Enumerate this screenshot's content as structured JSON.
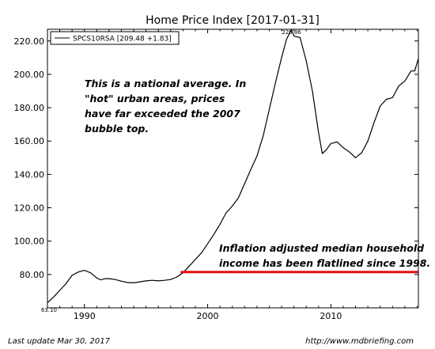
{
  "chart_data": {
    "type": "line",
    "title": "Home Price Index  [2017-01-31]",
    "xlim": [
      1987.0,
      2017.1
    ],
    "ylim": [
      60,
      227
    ],
    "yticks": [
      80,
      100,
      120,
      140,
      160,
      180,
      200,
      220
    ],
    "ytick_labels": [
      "80.00",
      "100.00",
      "120.00",
      "140.00",
      "160.00",
      "180.00",
      "200.00",
      "220.00"
    ],
    "xticks": [
      1990,
      2000,
      2010
    ],
    "xtick_labels": [
      "1990",
      "2000",
      "2010"
    ],
    "legend_label": "SPCS10RSA [209.48 +1.83]",
    "legend_position": "top-left",
    "grid": false,
    "series": [
      {
        "name": "SPCS10RSA",
        "color": "#000000",
        "x": [
          1987.0,
          1987.5,
          1988.0,
          1988.5,
          1989.0,
          1989.5,
          1990.0,
          1990.5,
          1991.0,
          1991.3,
          1991.7,
          1992.0,
          1992.5,
          1993.0,
          1993.5,
          1994.0,
          1994.5,
          1995.0,
          1995.5,
          1996.0,
          1996.5,
          1997.0,
          1997.5,
          1998.0,
          1998.5,
          1999.0,
          1999.5,
          2000.0,
          2000.5,
          2001.0,
          2001.5,
          2002.0,
          2002.5,
          2003.0,
          2003.5,
          2004.0,
          2004.5,
          2005.0,
          2005.5,
          2006.0,
          2006.4,
          2006.8,
          2007.0,
          2007.5,
          2008.0,
          2008.5,
          2009.0,
          2009.3,
          2009.6,
          2010.0,
          2010.5,
          2011.0,
          2011.5,
          2012.0,
          2012.5,
          2013.0,
          2013.5,
          2014.0,
          2014.5,
          2015.0,
          2015.5,
          2016.0,
          2016.5,
          2016.8,
          2017.1
        ],
        "y": [
          63.1,
          66.5,
          70.5,
          74.5,
          79.5,
          81.5,
          82.5,
          81.0,
          78.0,
          76.8,
          77.5,
          77.5,
          77.0,
          76.0,
          75.2,
          75.0,
          75.6,
          76.2,
          76.5,
          76.2,
          76.5,
          77.0,
          78.5,
          81.0,
          85.0,
          89.0,
          93.0,
          98.5,
          104.0,
          110.0,
          117.0,
          121.0,
          126.0,
          134.5,
          143.0,
          151.0,
          163.0,
          179.0,
          195.0,
          210.0,
          221.0,
          226.9,
          223.0,
          222.0,
          208.0,
          190.0,
          165.0,
          152.5,
          154.5,
          158.5,
          159.5,
          156.0,
          153.5,
          150.0,
          153.0,
          160.0,
          171.0,
          181.0,
          185.0,
          186.0,
          193.0,
          196.0,
          202.0,
          202.0,
          209.5
        ]
      },
      {
        "name": "",
        "color": "#e01010",
        "x": [
          1997.8,
          2017.1
        ],
        "y": [
          81.5,
          81.5
        ]
      }
    ],
    "annotations": [
      {
        "text": "226.86",
        "x": 2006.8,
        "y": 226.9
      },
      {
        "text": "63.10",
        "x": 1987.0,
        "y": 63.1
      }
    ]
  },
  "notes": {
    "top": [
      "This is a national average. In",
      "\"hot\" urban areas, prices",
      "have far exceeded the 2007",
      "bubble top."
    ],
    "bottom": [
      "Inflation adjusted median household",
      "income has been flatlined since 1998."
    ]
  },
  "footer": {
    "left": "Last update Mar 30, 2017",
    "right": "http://www.mdbriefing.com"
  }
}
